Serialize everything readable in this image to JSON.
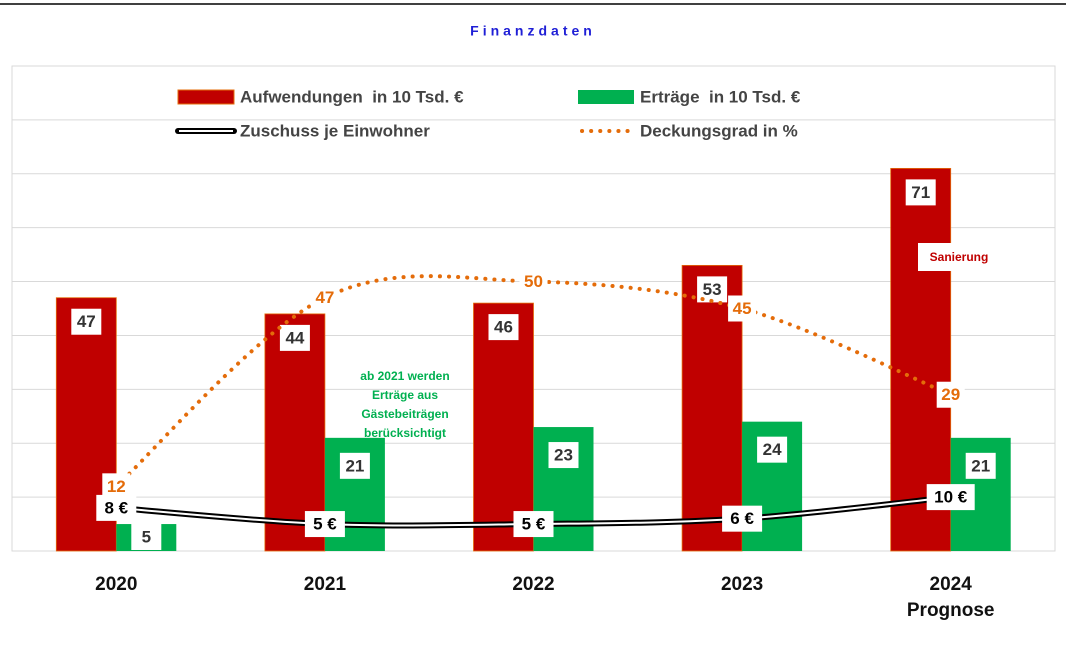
{
  "chart_data": {
    "type": "bar_line",
    "title": "Finanzdaten",
    "categories": [
      "2020",
      "2021",
      "2022",
      "2023",
      "2024\nPrognose"
    ],
    "series": [
      {
        "name": "Aufwendungen  in 10 Tsd. €",
        "kind": "bar",
        "color": "#c00000",
        "values": [
          47,
          44,
          46,
          53,
          71
        ]
      },
      {
        "name": "Erträge  in 10 Tsd. €",
        "kind": "bar",
        "color": "#00b050",
        "values": [
          5,
          21,
          23,
          24,
          21
        ]
      },
      {
        "name": "Zuschuss je Einwohner",
        "kind": "double-line",
        "color": "#000000",
        "values": [
          8,
          5,
          5,
          6,
          10
        ],
        "value_labels": [
          "8 €",
          "5 €",
          "5 €",
          "6 €",
          "10 €"
        ]
      },
      {
        "name": "Deckungsgrad in %",
        "kind": "dotted-line",
        "color": "#e46c0a",
        "values": [
          12,
          47,
          50,
          45,
          29
        ]
      }
    ],
    "ylim": [
      0,
      90
    ],
    "yticks": [
      0,
      10,
      20,
      30,
      40,
      50,
      60,
      70,
      80,
      90
    ],
    "grid": true,
    "annotations": [
      "ab 2021 werden\nErträge aus\nGästebeiträgen\nberücksichtigt",
      "Sanierung"
    ]
  }
}
